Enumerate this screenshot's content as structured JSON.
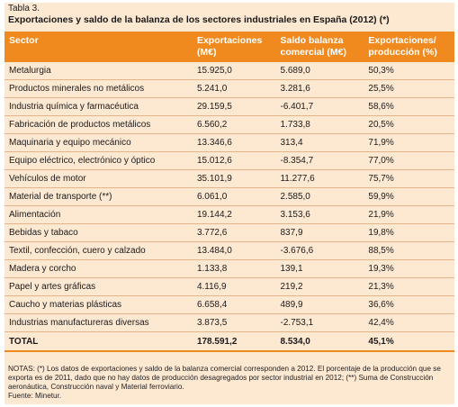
{
  "label": "Tabla 3.",
  "title": "Exportaciones y saldo de la balanza de los sectores industriales en España (2012) (*)",
  "columns": {
    "sector": "Sector",
    "exp_l1": "Exportaciones",
    "exp_l2": "(M€)",
    "saldo_l1": "Saldo balanza",
    "saldo_l2": "comercial (M€)",
    "ratio_l1": "Exportaciones/",
    "ratio_l2": "producción (%)"
  },
  "rows": [
    {
      "sector": "Metalurgia",
      "exp": "15.925,0",
      "saldo": "5.689,0",
      "ratio": "50,3%"
    },
    {
      "sector": "Productos minerales no metálicos",
      "exp": "5.241,0",
      "saldo": "3.281,6",
      "ratio": "25,5%"
    },
    {
      "sector": "Industria química y farmacéutica",
      "exp": "29.159,5",
      "saldo": "-6.401,7",
      "ratio": "58,6%"
    },
    {
      "sector": "Fabricación de productos metálicos",
      "exp": "6.560,2",
      "saldo": "1.733,8",
      "ratio": "20,5%"
    },
    {
      "sector": "Maquinaria y equipo mecánico",
      "exp": "13.346,6",
      "saldo": "313,4",
      "ratio": "71,9%"
    },
    {
      "sector": "Equipo eléctrico, electrónico y óptico",
      "exp": "15.012,6",
      "saldo": "-8.354,7",
      "ratio": "77,0%"
    },
    {
      "sector": "Vehículos de motor",
      "exp": "35.101,9",
      "saldo": "11.277,6",
      "ratio": "75,7%"
    },
    {
      "sector": "Material de transporte (**)",
      "exp": "6.061,0",
      "saldo": "2.585,0",
      "ratio": "59,9%"
    },
    {
      "sector": "Alimentación",
      "exp": "19.144,2",
      "saldo": "3.153,6",
      "ratio": "21,9%"
    },
    {
      "sector": "Bebidas y tabaco",
      "exp": "3.772,6",
      "saldo": "837,9",
      "ratio": "19,8%"
    },
    {
      "sector": "Textil, confección, cuero y calzado",
      "exp": "13.484,0",
      "saldo": "-3.676,6",
      "ratio": "88,5%"
    },
    {
      "sector": "Madera y corcho",
      "exp": "1.133,8",
      "saldo": "139,1",
      "ratio": "19,3%"
    },
    {
      "sector": "Papel y artes gráficas",
      "exp": "4.116,9",
      "saldo": "219,2",
      "ratio": "21,3%"
    },
    {
      "sector": "Caucho y materias plásticas",
      "exp": "6.658,4",
      "saldo": "489,9",
      "ratio": "36,6%"
    },
    {
      "sector": "Industrias manufactureras diversas",
      "exp": "3.873,5",
      "saldo": "-2.753,1",
      "ratio": "42,4%"
    }
  ],
  "total": {
    "sector": "TOTAL",
    "exp": "178.591,2",
    "saldo": "8.534,0",
    "ratio": "45,1%"
  },
  "notes": {
    "text": "NOTAS: (*) Los datos de exportaciones y saldo de la balanza comercial corresponden a 2012. El porcentaje de la producción que se exporta es de 2011, dado que no hay datos de producción desagregados por sector industrial en 2012; (**) Suma de Construcción aeronáutica, Construcción naval y Material ferroviario.",
    "source": "Fuente: Minetur."
  },
  "colors": {
    "header": "#f08a1e",
    "background": "#fde8d2",
    "rule": "#e8b58a"
  }
}
